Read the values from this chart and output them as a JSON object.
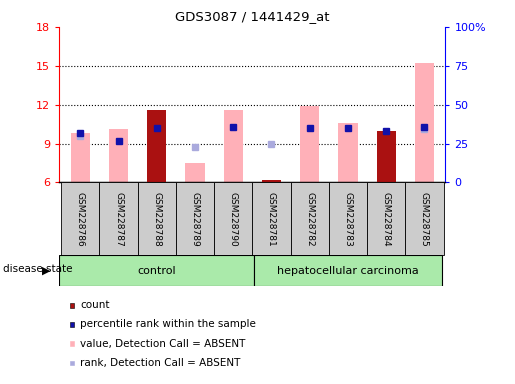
{
  "title": "GDS3087 / 1441429_at",
  "samples": [
    "GSM228786",
    "GSM228787",
    "GSM228788",
    "GSM228789",
    "GSM228790",
    "GSM228781",
    "GSM228782",
    "GSM228783",
    "GSM228784",
    "GSM228785"
  ],
  "ylim_left": [
    6,
    18
  ],
  "ylim_right": [
    0,
    100
  ],
  "yticks_left": [
    6,
    9,
    12,
    15,
    18
  ],
  "yticks_right": [
    0,
    25,
    50,
    75,
    100
  ],
  "yticklabels_right": [
    "0",
    "25",
    "50",
    "75",
    "100%"
  ],
  "pink_bar_tops": [
    9.8,
    10.1,
    11.6,
    7.5,
    11.6,
    6.2,
    11.9,
    10.6,
    10.0,
    15.2
  ],
  "dark_red_bar_tops": [
    0,
    0,
    11.6,
    0,
    0,
    6.2,
    0,
    0,
    10.0,
    0
  ],
  "blue_sq_y": [
    9.8,
    9.2,
    10.2,
    0,
    10.3,
    0,
    10.2,
    10.2,
    10.0,
    10.3
  ],
  "lightblue_sq_y": [
    9.6,
    0,
    0,
    8.7,
    0,
    8.95,
    0,
    0,
    0,
    10.1
  ],
  "bar_base": 6,
  "bar_width": 0.5,
  "color_pink": "#FFB0B8",
  "color_dark_red": "#AA1111",
  "color_blue": "#1111AA",
  "color_lightblue": "#AAAADD",
  "color_green_light": "#AAEAAA",
  "color_green_dark": "#66CC66",
  "color_gray": "#CCCCCC",
  "control_label": "control",
  "carcinoma_label": "hepatocellular carcinoma",
  "disease_state_label": "disease state",
  "legend_items": [
    {
      "color": "#AA1111",
      "label": "count"
    },
    {
      "color": "#1111AA",
      "label": "percentile rank within the sample"
    },
    {
      "color": "#FFB0B8",
      "label": "value, Detection Call = ABSENT"
    },
    {
      "color": "#AAAADD",
      "label": "rank, Detection Call = ABSENT"
    }
  ]
}
